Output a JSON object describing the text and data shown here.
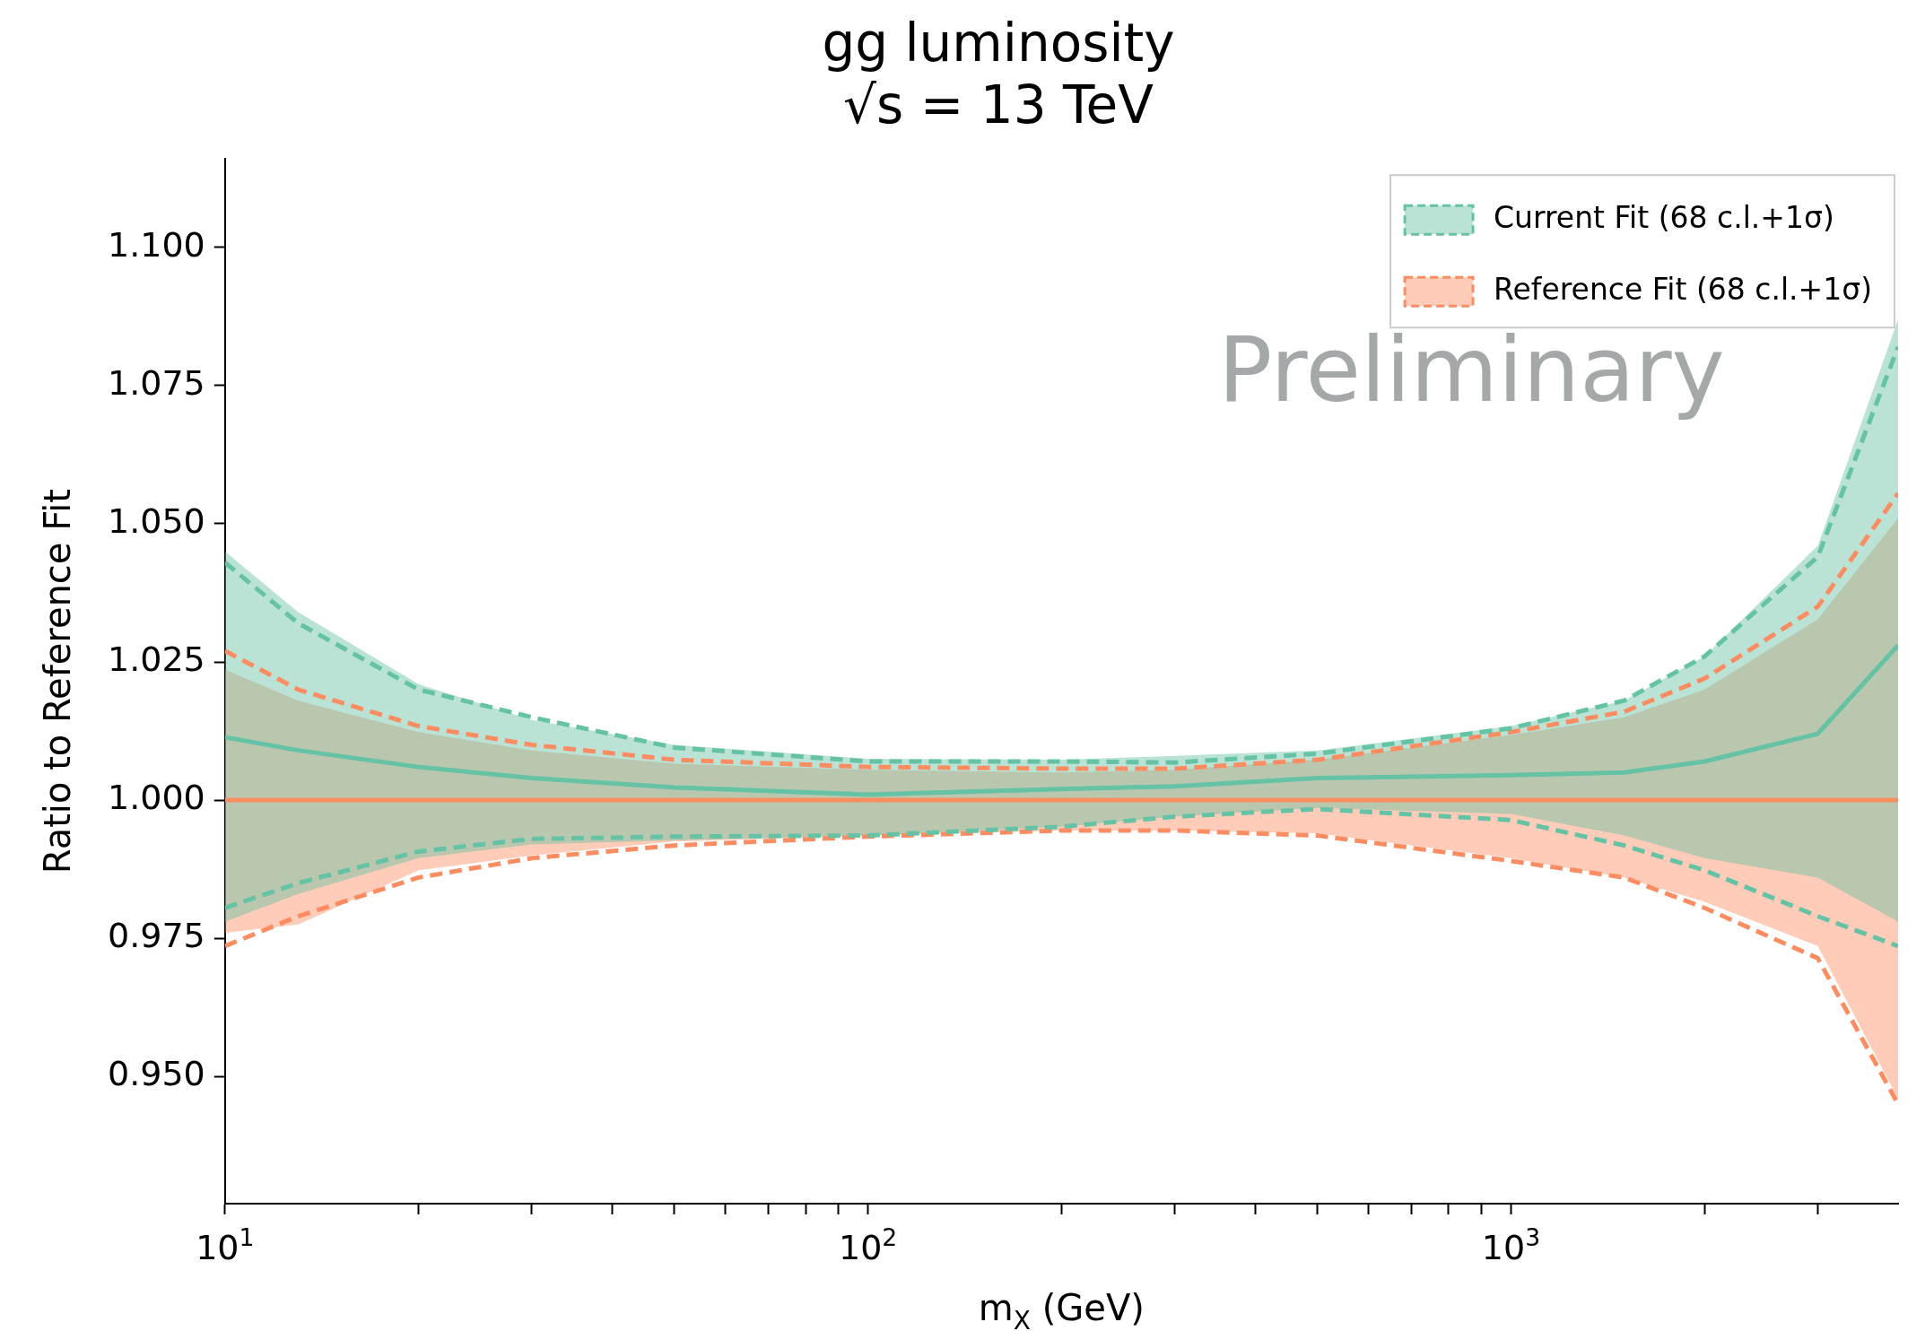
{
  "chart_data": {
    "type": "line",
    "title": "gg luminosity",
    "subtitle": "√s = 13 TeV",
    "xlabel": "m$_{X}$ (GeV)",
    "ylabel": "Ratio to Reference Fit",
    "annotations": [
      "Preliminary"
    ],
    "x": [
      10,
      13,
      20,
      30,
      50,
      100,
      200,
      300,
      500,
      1000,
      1500,
      2000,
      3000,
      4000
    ],
    "series": [
      {
        "name": "Current Fit (68 c.l.+1σ)",
        "color": "#66c2a5",
        "values": [
          1.0114,
          1.009,
          1.006,
          1.004,
          1.0023,
          1.001,
          1.002,
          1.0025,
          1.004,
          1.0045,
          1.005,
          1.007,
          1.012,
          1.028
        ],
        "lower": [
          0.978,
          0.983,
          0.9895,
          0.992,
          0.9927,
          0.9936,
          0.9952,
          0.997,
          0.9986,
          0.9975,
          0.9936,
          0.9895,
          0.986,
          0.978
        ],
        "upper": [
          1.045,
          1.034,
          1.021,
          1.0145,
          1.01,
          1.0075,
          1.0073,
          1.008,
          1.009,
          1.0134,
          1.018,
          1.026,
          1.046,
          1.087
        ]
      },
      {
        "name": "Reference Fit (68 c.l.+1σ)",
        "color": "#fc8d62",
        "values": [
          1,
          1,
          1,
          1,
          1,
          1,
          1,
          1,
          1,
          1,
          1,
          1,
          1,
          1
        ],
        "lower": [
          0.976,
          0.9775,
          0.9873,
          0.99,
          0.9925,
          0.9936,
          0.9945,
          0.9945,
          0.994,
          0.9895,
          0.986,
          0.9816,
          0.9736,
          0.946
        ],
        "upper": [
          1.0236,
          1.018,
          1.0123,
          1.009,
          1.0066,
          1.0055,
          1.005,
          1.0055,
          1.0073,
          1.0118,
          1.015,
          1.02,
          1.0327,
          1.051
        ]
      },
      {
        "color": "#66c2a5",
        "line_style": "dashed",
        "values": [
          1.043,
          1.032,
          1.02,
          1.015,
          1.0095,
          1.007,
          1.007,
          1.0068,
          1.0084,
          1.013,
          1.018,
          1.026,
          1.044,
          1.082
        ]
      },
      {
        "color": "#66c2a5",
        "line_style": "dashed",
        "values": [
          0.9805,
          0.985,
          0.9907,
          0.993,
          0.9934,
          0.9936,
          0.9952,
          0.997,
          0.9984,
          0.9964,
          0.9918,
          0.9873,
          0.979,
          0.9736
        ]
      },
      {
        "color": "#fc8d62",
        "line_style": "dashed",
        "values": [
          1.027,
          1.02,
          1.0134,
          1.01,
          1.0073,
          1.006,
          1.0057,
          1.0057,
          1.0073,
          1.0123,
          1.016,
          1.022,
          1.035,
          1.0555
        ]
      },
      {
        "color": "#fc8d62",
        "line_style": "dashed",
        "values": [
          0.9736,
          0.979,
          0.986,
          0.9895,
          0.9918,
          0.9934,
          0.9945,
          0.9945,
          0.9936,
          0.989,
          0.986,
          0.9805,
          0.9714,
          0.945
        ]
      }
    ],
    "log": "x",
    "xlim": [
      10,
      4000
    ],
    "ylim": [
      0.927,
      1.116
    ],
    "xticks": [
      {
        "value": 10,
        "label": "10$^{1}$"
      },
      {
        "value": 20,
        "label": null
      },
      {
        "value": 30,
        "label": null
      },
      {
        "value": 40,
        "label": null
      },
      {
        "value": 50,
        "label": null
      },
      {
        "value": 60,
        "label": null
      },
      {
        "value": 70,
        "label": null
      },
      {
        "value": 80,
        "label": null
      },
      {
        "value": 90,
        "label": null
      },
      {
        "value": 100,
        "label": "10$^{2}$"
      },
      {
        "value": 200,
        "label": null
      },
      {
        "value": 300,
        "label": null
      },
      {
        "value": 400,
        "label": null
      },
      {
        "value": 500,
        "label": null
      },
      {
        "value": 600,
        "label": null
      },
      {
        "value": 700,
        "label": null
      },
      {
        "value": 800,
        "label": null
      },
      {
        "value": 900,
        "label": null
      },
      {
        "value": 1000,
        "label": "10$^{3}$"
      },
      {
        "value": 2000,
        "label": null
      },
      {
        "value": 3000,
        "label": null
      }
    ],
    "yticks": [
      {
        "value": 0.95,
        "label": "0.950"
      },
      {
        "value": 0.975,
        "label": "0.975"
      },
      {
        "value": 1.0,
        "label": "1.000"
      },
      {
        "value": 1.025,
        "label": "1.025"
      },
      {
        "value": 1.05,
        "label": "1.050"
      },
      {
        "value": 1.075,
        "label": "1.075"
      },
      {
        "value": 1.1,
        "label": "1.100"
      }
    ],
    "grid": false,
    "legend": "top right",
    "marker": "none"
  }
}
